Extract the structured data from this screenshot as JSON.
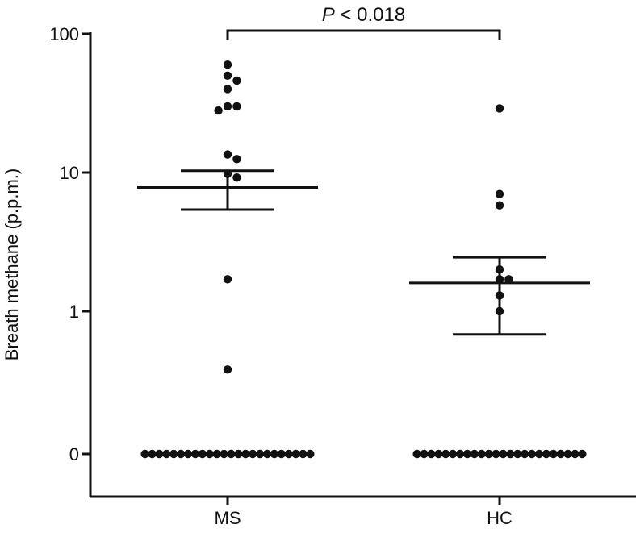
{
  "chart_data": {
    "type": "scatter",
    "title": "",
    "xlabel": "",
    "ylabel": "Breath methane (p.p.m.)",
    "y_scale": "log",
    "y_ticks": [
      {
        "value": 0,
        "label": "0"
      },
      {
        "value": 1,
        "label": "1"
      },
      {
        "value": 10,
        "label": "10"
      },
      {
        "value": 100,
        "label": "100"
      }
    ],
    "categories": [
      "MS",
      "HC"
    ],
    "annotation": {
      "prefix": "P",
      "text": " < 0.018",
      "between": [
        "MS",
        "HC"
      ]
    },
    "groups": [
      {
        "category": "MS",
        "points": [
          60,
          50,
          46,
          40,
          30,
          30,
          28,
          13.5,
          12.5,
          9.8,
          9.2,
          1.7,
          0.38
        ],
        "zero_count": 24,
        "mean": 7.8,
        "error_upper": 10.3,
        "error_lower": 5.4
      },
      {
        "category": "HC",
        "points": [
          29,
          7,
          5.8,
          2.0,
          1.7,
          1.7,
          1.3,
          1.0
        ],
        "zero_count": 24,
        "mean": 1.6,
        "error_upper": 2.45,
        "error_lower": 0.68
      }
    ]
  }
}
